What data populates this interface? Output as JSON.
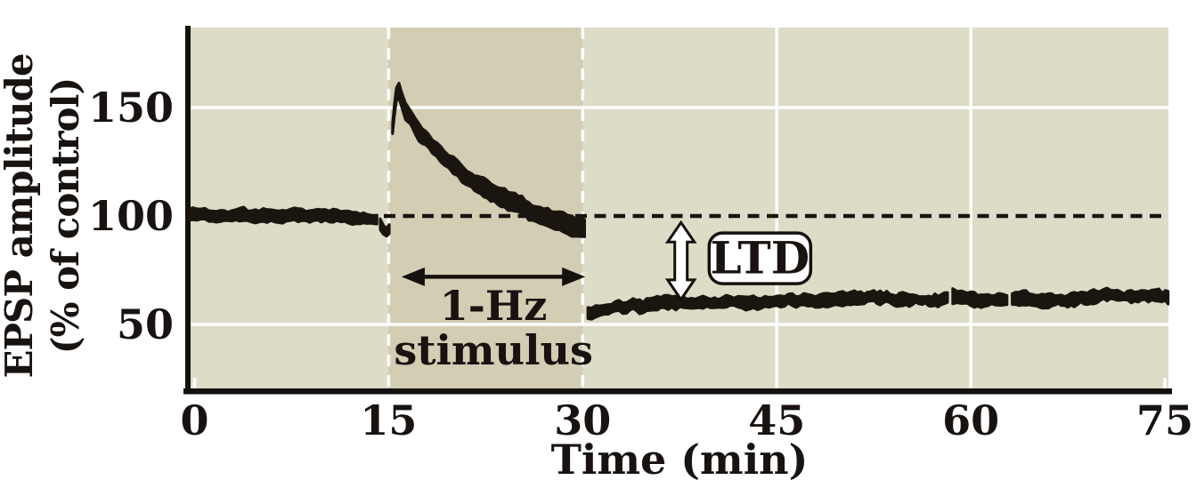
{
  "chart_data": {
    "type": "line",
    "xlabel": "Time (min)",
    "ylabel_line1": "EPSP amplitude",
    "ylabel_line2": "(% of control)",
    "xlim": [
      -0.45,
      75.3
    ],
    "ylim": [
      20.5,
      187
    ],
    "xticks": [
      0,
      15,
      30,
      45,
      60,
      75
    ],
    "yticks": [
      150,
      100,
      50
    ],
    "grid": {
      "x_solid_white": [
        45,
        60
      ],
      "x_dashed_white": [
        15,
        30
      ],
      "y_solid_white": [
        50,
        150
      ],
      "x_edge_ticks": [
        0,
        75
      ]
    },
    "baseline_reference": 100,
    "stimulus_band": {
      "x_start": 15,
      "x_end": 30
    },
    "colors": {
      "plot_bg": "#dddcc6",
      "band_bg": "#d2cdb3",
      "trace": "#1b150f",
      "grid": "#ffffff",
      "axis": "#14100c",
      "dashed_baseline": "#181310",
      "annotation_box_bg": "#ffffff"
    },
    "series": [
      {
        "name": "pre-stimulus baseline (~100%)",
        "halfwidth": [
          2.6,
          2.6
        ],
        "noise": 0.75,
        "seed": 11,
        "points": [
          [
            -0.45,
            100.5
          ],
          [
            0.8,
            101
          ],
          [
            2,
            100.3
          ],
          [
            3.2,
            100.6
          ],
          [
            4.4,
            100
          ],
          [
            5.6,
            100.2
          ],
          [
            6.8,
            99.6
          ],
          [
            8,
            100.2
          ],
          [
            9.2,
            99.8
          ],
          [
            10.4,
            99.4
          ],
          [
            11.6,
            99
          ],
          [
            12.8,
            98.8
          ],
          [
            13.6,
            98.4
          ],
          [
            14.1,
            98
          ]
        ]
      },
      {
        "name": "dip before stimulus",
        "halfwidth": [
          2.2,
          2.2
        ],
        "noise": 0.6,
        "seed": 5,
        "points": [
          [
            14.35,
            96
          ],
          [
            14.6,
            93.5
          ],
          [
            14.85,
            92
          ],
          [
            15.05,
            93.5
          ]
        ]
      },
      {
        "name": "potentiation during 1-Hz stimulus decaying to baseline",
        "halfwidth": [
          2.9,
          4.6
        ],
        "noise": 1.0,
        "seed": 23,
        "points": [
          [
            15.3,
            141
          ],
          [
            15.45,
            150
          ],
          [
            15.6,
            156
          ],
          [
            15.8,
            158.5
          ],
          [
            16,
            154
          ],
          [
            16.3,
            149
          ],
          [
            16.7,
            145.5
          ],
          [
            17.1,
            141.5
          ],
          [
            17.6,
            137.5
          ],
          [
            18.1,
            133.5
          ],
          [
            18.7,
            129.5
          ],
          [
            19.3,
            126
          ],
          [
            20,
            122.5
          ],
          [
            20.7,
            119
          ],
          [
            21.4,
            116.5
          ],
          [
            22.1,
            114
          ],
          [
            22.9,
            111.5
          ],
          [
            23.7,
            109
          ],
          [
            24.5,
            106.5
          ],
          [
            25.3,
            104.5
          ],
          [
            26.1,
            102.5
          ],
          [
            27,
            100.5
          ],
          [
            27.9,
            98.5
          ],
          [
            28.8,
            97
          ],
          [
            29.5,
            95.8
          ],
          [
            30.15,
            95
          ]
        ]
      },
      {
        "name": "post-stimulus LTD (~60%) part 1",
        "halfwidth": [
          2.5,
          2.6
        ],
        "noise": 0.95,
        "seed": 31,
        "points": [
          [
            30.4,
            54.5
          ],
          [
            31,
            56
          ],
          [
            31.7,
            56.8
          ],
          [
            32.5,
            57.4
          ],
          [
            33.4,
            58
          ],
          [
            34.4,
            58.4
          ],
          [
            35.5,
            58.8
          ],
          [
            36.6,
            59.2
          ],
          [
            37.8,
            59.6
          ],
          [
            39,
            59.8
          ],
          [
            40.2,
            60.2
          ],
          [
            41.4,
            60.6
          ],
          [
            42.6,
            60.4
          ],
          [
            43.8,
            61
          ],
          [
            45,
            61
          ],
          [
            46.2,
            61.4
          ],
          [
            47.4,
            61.8
          ],
          [
            48.6,
            61.6
          ],
          [
            49.8,
            62.4
          ],
          [
            51,
            63
          ],
          [
            52,
            62.6
          ],
          [
            53,
            62.2
          ],
          [
            54,
            62
          ],
          [
            55,
            61.6
          ],
          [
            56,
            61.2
          ],
          [
            57,
            60.8
          ],
          [
            57.7,
            61.2
          ],
          [
            58.2,
            62.5
          ]
        ]
      },
      {
        "name": "post-stimulus LTD part 2",
        "halfwidth": [
          2.6,
          2.6
        ],
        "noise": 0.95,
        "seed": 37,
        "points": [
          [
            58.6,
            63
          ],
          [
            59.3,
            62.2
          ],
          [
            60,
            61.2
          ],
          [
            60.8,
            60.8
          ],
          [
            61.6,
            61
          ],
          [
            62.4,
            61.2
          ],
          [
            62.8,
            61
          ]
        ]
      },
      {
        "name": "post-stimulus LTD part 3",
        "halfwidth": [
          2.6,
          2.6
        ],
        "noise": 0.95,
        "seed": 41,
        "points": [
          [
            63.2,
            61.2
          ],
          [
            64,
            61.5
          ],
          [
            65,
            61.2
          ],
          [
            66,
            61.6
          ],
          [
            67,
            62
          ],
          [
            68,
            62
          ],
          [
            69,
            62.4
          ],
          [
            70,
            63
          ],
          [
            70.8,
            63.8
          ],
          [
            71.6,
            63.4
          ],
          [
            72.4,
            63
          ],
          [
            73.2,
            63.4
          ],
          [
            74,
            63.6
          ],
          [
            74.8,
            62.8
          ],
          [
            75.25,
            62.5
          ]
        ]
      }
    ],
    "annotations": {
      "stimulus_arrow": {
        "x_start": 16.0,
        "x_end": 30.2,
        "y": 72
      },
      "stimulus_label": {
        "line1": "1-Hz",
        "line2": "stimulus",
        "x": 23.1,
        "y_line1": 52,
        "y_line2": 31.5
      },
      "ltd": {
        "label": "LTD",
        "arrow_x": 37.6,
        "arrow_top": 97,
        "arrow_bottom": 61.5,
        "box_center_x": 43.7,
        "box_center_y": 80.5
      }
    }
  }
}
